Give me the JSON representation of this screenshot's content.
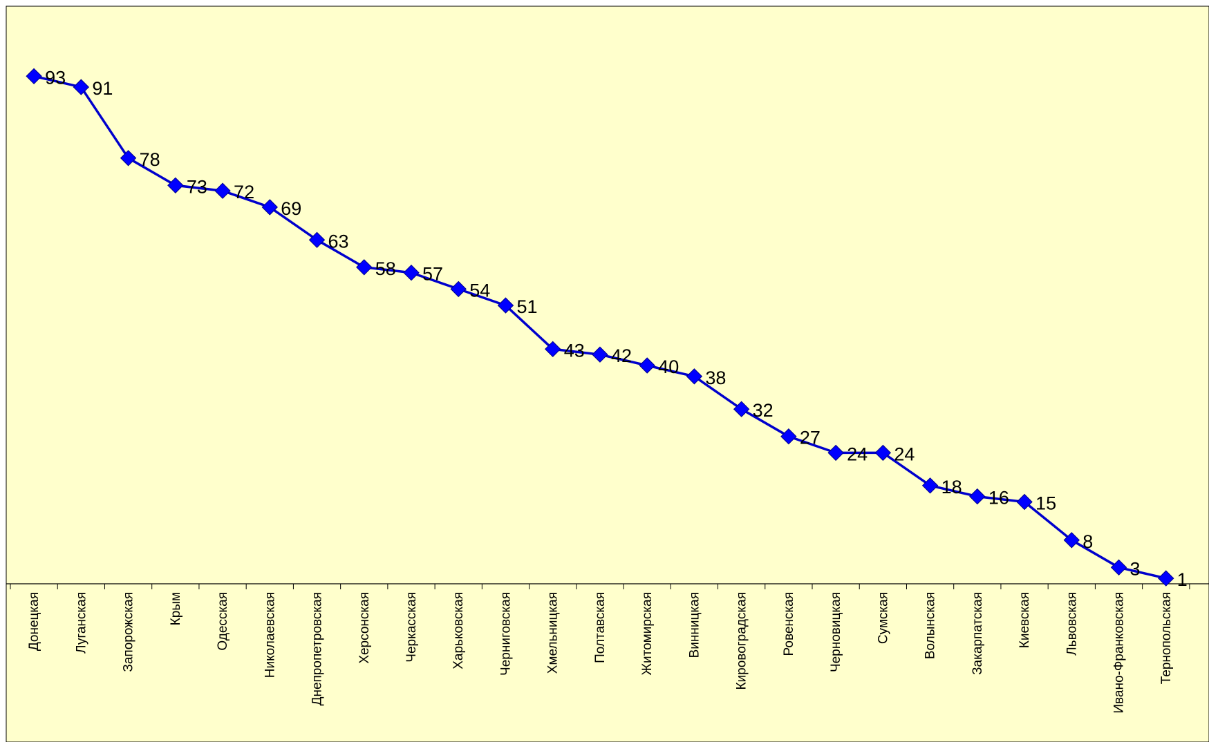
{
  "chart_data": {
    "type": "line",
    "categories": [
      "Донецкая",
      "Луганская",
      "Запорожская",
      "Крым",
      "Одесская",
      "Николаевская",
      "Днепропетровская",
      "Херсонская",
      "Черкасская",
      "Харьковская",
      "Черниговская",
      "Хмельницкая",
      "Полтавская",
      "Житомирская",
      "Винницкая",
      "Кировоградская",
      "Ровенская",
      "Черновицкая",
      "Сумская",
      "Волынская",
      "Закарпатская",
      "Киевская",
      "Львовская",
      "Ивано-Франковская",
      "Тернопольская"
    ],
    "series": [
      {
        "values": [
          93,
          91,
          78,
          73,
          72,
          69,
          63,
          58,
          57,
          54,
          51,
          43,
          42,
          40,
          38,
          32,
          27,
          24,
          24,
          18,
          16,
          15,
          8,
          3,
          1
        ]
      }
    ],
    "data_labels": [
      "93",
      "91",
      "78",
      "73",
      "72",
      "69",
      "63",
      "58",
      "57",
      "54",
      "51",
      "43",
      "42",
      "40",
      "38",
      "32",
      "27",
      "24",
      "24",
      "18",
      "16",
      "15",
      "8",
      "3",
      "1"
    ],
    "ylim": [
      0,
      100
    ],
    "grid": false,
    "legend": "none",
    "colors": {
      "plot_background": "#ffffcc",
      "line": "#0000cc",
      "marker": "#0000ff"
    }
  }
}
